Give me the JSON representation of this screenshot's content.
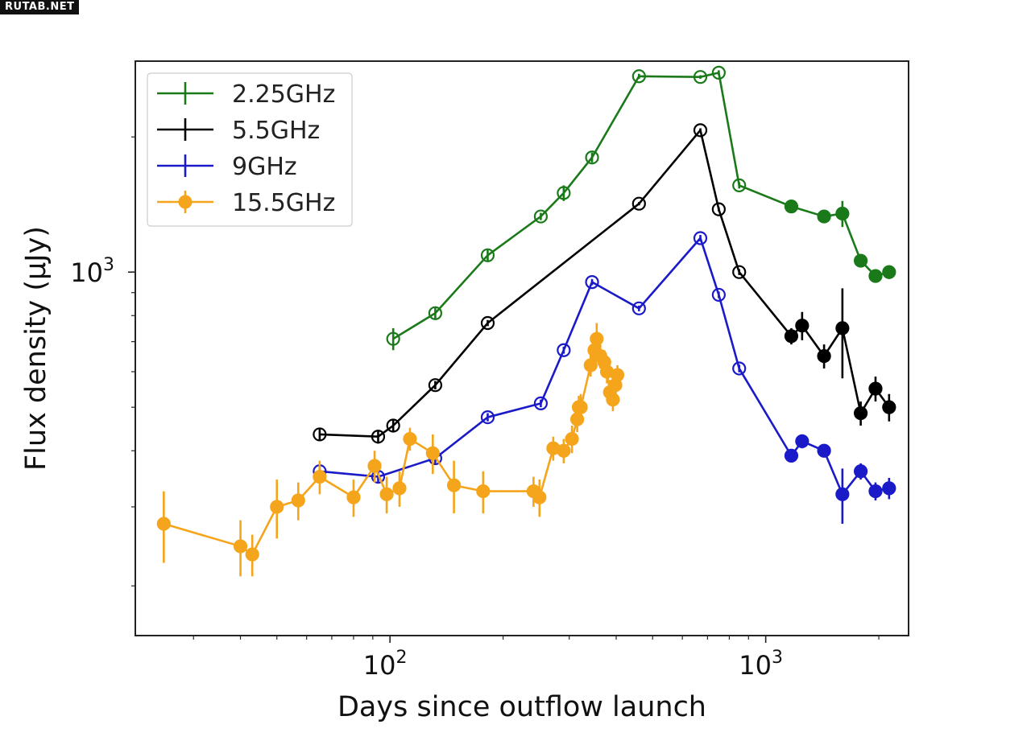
{
  "watermark": "RUTAB.NET",
  "chart_data": {
    "type": "scatter",
    "xlabel": "Days since outflow launch",
    "ylabel": "Flux density (μJy)",
    "xscale": "log",
    "yscale": "log",
    "xlim": [
      21,
      2400
    ],
    "ylim": [
      155,
      2950
    ],
    "x_tick_labels": [
      {
        "value": 100,
        "base": "10",
        "exp": "2"
      },
      {
        "value": 1000,
        "base": "10",
        "exp": "3"
      }
    ],
    "y_tick_labels": [
      {
        "value": 1000,
        "base": "10",
        "exp": "3"
      }
    ],
    "legend_position": "top-left",
    "series": [
      {
        "name": "2.25GHz",
        "color": "#1a7a1a",
        "x": [
          102,
          132,
          182,
          252,
          290,
          345,
          460,
          670,
          750,
          850,
          1170,
          1430,
          1600,
          1790,
          1960,
          2130
        ],
        "y": [
          710,
          810,
          1090,
          1330,
          1500,
          1800,
          2730,
          2720,
          2780,
          1560,
          1400,
          1330,
          1350,
          1060,
          980,
          1000
        ],
        "yerr": [
          40,
          25,
          30,
          25,
          60,
          45,
          35,
          25,
          35,
          25,
          20,
          20,
          90,
          30,
          20,
          35
        ],
        "filled": [
          false,
          false,
          false,
          false,
          false,
          false,
          false,
          false,
          false,
          false,
          true,
          true,
          true,
          true,
          true,
          true
        ]
      },
      {
        "name": "5.5GHz",
        "color": "#000000",
        "x": [
          65,
          93,
          102,
          132,
          182,
          460,
          670,
          750,
          850,
          1170,
          1250,
          1430,
          1600,
          1790,
          1960,
          2130
        ],
        "y": [
          435,
          430,
          455,
          560,
          770,
          1420,
          2070,
          1380,
          1000,
          720,
          760,
          650,
          750,
          485,
          550,
          500
        ],
        "yerr": [
          12,
          15,
          15,
          12,
          12,
          12,
          20,
          15,
          15,
          30,
          55,
          40,
          170,
          30,
          35,
          35
        ],
        "filled": [
          false,
          false,
          false,
          false,
          false,
          false,
          false,
          false,
          false,
          true,
          true,
          true,
          true,
          true,
          true,
          true
        ]
      },
      {
        "name": "9GHz",
        "color": "#1a1ac8",
        "x": [
          65,
          93,
          132,
          182,
          252,
          290,
          345,
          460,
          670,
          750,
          850,
          1170,
          1250,
          1430,
          1600,
          1790,
          1960,
          2130
        ],
        "y": [
          360,
          350,
          385,
          475,
          510,
          670,
          950,
          830,
          1190,
          890,
          610,
          390,
          420,
          400,
          320,
          360,
          325,
          330
        ],
        "yerr": [
          10,
          10,
          10,
          10,
          10,
          12,
          15,
          12,
          20,
          15,
          12,
          12,
          15,
          12,
          45,
          15,
          15,
          18
        ],
        "filled": [
          false,
          false,
          false,
          false,
          false,
          false,
          false,
          false,
          false,
          false,
          false,
          true,
          true,
          true,
          true,
          true,
          true,
          true
        ]
      },
      {
        "name": "15.5GHz",
        "color": "#f5a51c",
        "x": [
          25,
          40,
          43,
          50,
          57,
          65,
          80,
          91,
          98,
          106,
          113,
          130,
          148,
          177,
          241,
          250,
          272,
          290,
          305,
          315,
          318,
          322,
          342,
          350,
          355,
          363,
          372,
          378,
          385,
          392,
          398,
          403
        ],
        "y": [
          275,
          245,
          235,
          300,
          310,
          350,
          315,
          370,
          320,
          330,
          425,
          395,
          335,
          325,
          325,
          315,
          405,
          400,
          425,
          470,
          500,
          500,
          620,
          670,
          710,
          650,
          630,
          600,
          540,
          520,
          560,
          590
        ],
        "yerr": [
          50,
          35,
          25,
          45,
          30,
          30,
          30,
          30,
          30,
          30,
          25,
          40,
          45,
          35,
          25,
          30,
          25,
          25,
          30,
          30,
          30,
          35,
          35,
          40,
          60,
          40,
          40,
          35,
          35,
          30,
          30,
          30
        ],
        "filled": [
          true,
          true,
          true,
          true,
          true,
          true,
          true,
          true,
          true,
          true,
          true,
          true,
          true,
          true,
          true,
          true,
          true,
          true,
          true,
          true,
          true,
          true,
          true,
          true,
          true,
          true,
          true,
          true,
          true,
          true,
          true,
          true
        ]
      }
    ]
  }
}
